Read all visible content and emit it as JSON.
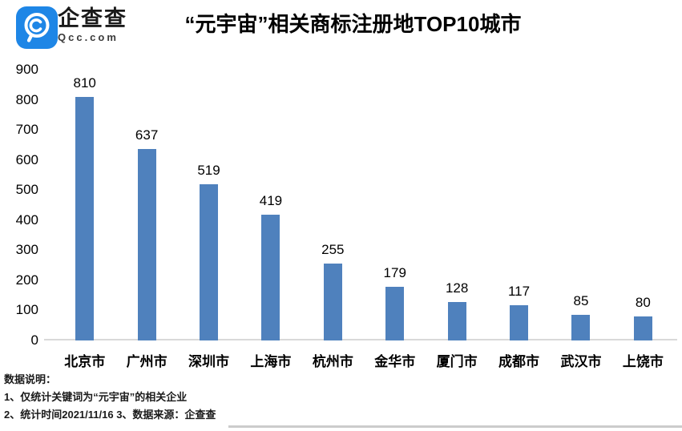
{
  "header": {
    "logo": {
      "name": "企查查",
      "domain": "Qcc.com",
      "icon": "qcc-magnifier-icon",
      "brand_color": "#1e86e6"
    },
    "title": "“元宇宙”相关商标注册地TOP10城市"
  },
  "chart_data": {
    "type": "bar",
    "title": "“元宇宙”相关商标注册地TOP10城市",
    "categories": [
      "北京市",
      "广州市",
      "深圳市",
      "上海市",
      "杭州市",
      "金华市",
      "厦门市",
      "成都市",
      "武汉市",
      "上饶市"
    ],
    "values": [
      810,
      637,
      519,
      419,
      255,
      179,
      128,
      117,
      85,
      80
    ],
    "xlabel": "",
    "ylabel": "",
    "ylim": [
      0,
      900
    ],
    "yticks": [
      0,
      100,
      200,
      300,
      400,
      500,
      600,
      700,
      800,
      900
    ],
    "bar_color": "#4F81BD",
    "grid": false,
    "legend": "none",
    "value_labels": true
  },
  "footer": {
    "note_title": "数据说明：",
    "notes": [
      "1、仅统计关键词为“元宇宙”的相关企业",
      "2、统计时间2021/11/16  3、数据来源：企查查"
    ]
  }
}
